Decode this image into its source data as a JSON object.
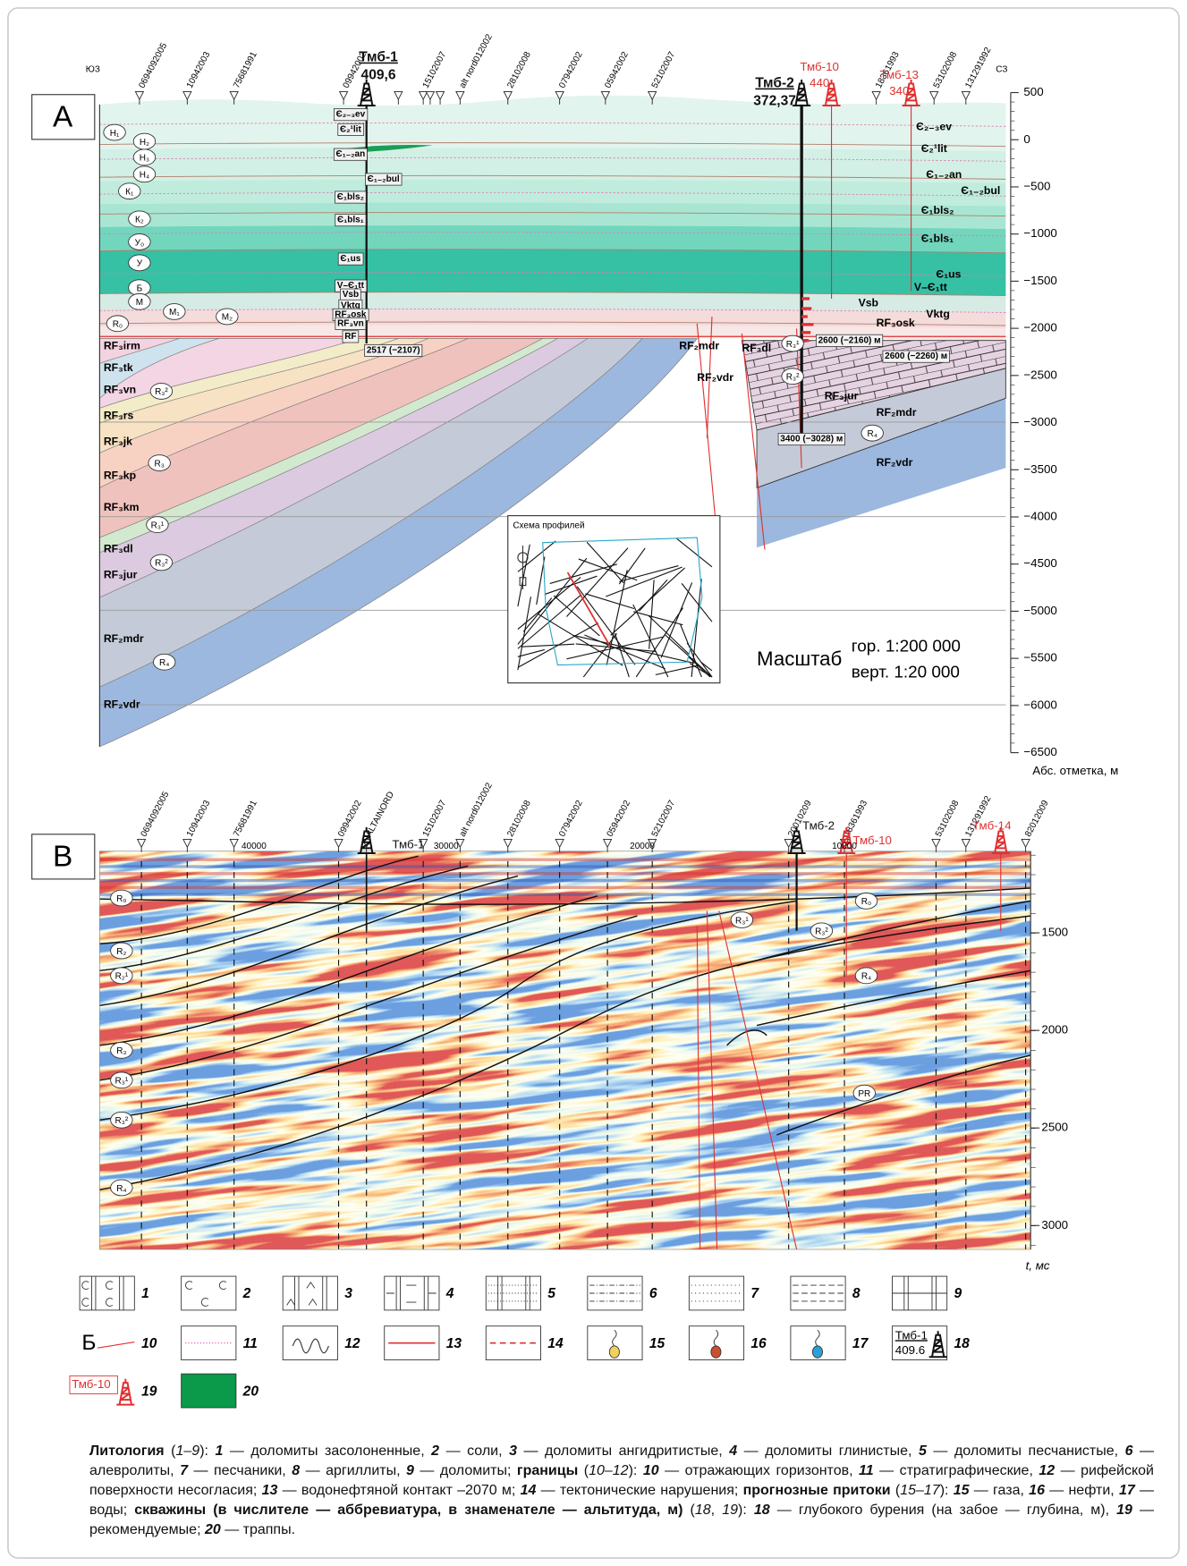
{
  "panel_a": {
    "label": "A",
    "directions": [
      "ЮЗ",
      "СЗ"
    ],
    "wells": [
      {
        "name": "0694092005"
      },
      {
        "name": "10942003"
      },
      {
        "name": "75681991"
      },
      {
        "name": "09942002"
      },
      {
        "name": "15102007"
      },
      {
        "name": "alt nord012002"
      },
      {
        "name": "28102008"
      },
      {
        "name": "07942002"
      },
      {
        "name": "05942002"
      },
      {
        "name": "52102007"
      },
      {
        "name": "18361993"
      },
      {
        "name": "53102008"
      },
      {
        "name": "131291992"
      }
    ],
    "drilled": [
      {
        "name": "Тмб-1",
        "altitude": "409,6"
      },
      {
        "name": "Тмб-2",
        "altitude": "372,37"
      },
      {
        "name": "Тмб-10",
        "altitude": "440"
      },
      {
        "name": "Тмб-13",
        "altitude": "340"
      }
    ],
    "depth_ticks": [
      "500",
      "0",
      "−500",
      "−1000",
      "−1500",
      "−2000",
      "−2500",
      "−3000",
      "−3500",
      "−4000",
      "−4500",
      "−5000",
      "−5500",
      "−6000",
      "−6500"
    ],
    "axis_label": "Абс. отметка, м",
    "formations": [
      "Є₂₋₃ev",
      "Є₂¹lit",
      "Є₁₋₂an",
      "Є₁₋₂bul",
      "Є₁bls₂",
      "Є₁bls₁",
      "Є₁us",
      "V–Є₁tt",
      "Vsb",
      "Vktg",
      "RF₃osk",
      "RF₂mdr",
      "RF₃dl",
      "RF₂vdr",
      "RF₃jur",
      "RF₂mdr",
      "RF₂vdr",
      "RF₃irm",
      "RF₃tk",
      "RF₃vn",
      "RF₃rs",
      "RF₃jk",
      "RF₃kp",
      "RF₃km",
      "RF₃dl",
      "RF₃jur",
      "RF₂mdr",
      "RF₂vdr"
    ],
    "horizons": [
      "Н₁",
      "Н₂",
      "Н₃",
      "Н₄",
      "К₁",
      "К₂",
      "У₀",
      "У",
      "Б",
      "М",
      "М₁",
      "М₂",
      "R₀",
      "R₃²",
      "R₃",
      "R₃¹",
      "R₃²",
      "R₄",
      "R₃¹",
      "R₃²",
      "R₄"
    ],
    "well_column": [
      "Є₂₋₃ev",
      "Є₂¹lit",
      "Є₁₋₂an",
      "Є₁₋₂bul",
      "Є₁bls₂",
      "Є₁bls₁",
      "Є₁us",
      "V–Є₁tt",
      "Vsb",
      "Vktg",
      "RF₃osk",
      "RF₃vn",
      "RF"
    ],
    "depth_notes": [
      "2517 (−2107)",
      "2600 (−2160) м",
      "2600 (−2260) м",
      "3400 (−3028) м"
    ],
    "inset_title": "Схема профилей",
    "scale": {
      "label": "Масштаб",
      "horizontal": "гор. 1:200 000",
      "vertical": "верт. 1:20 000"
    }
  },
  "panel_b": {
    "label": "B",
    "wells": [
      {
        "name": "0694092005"
      },
      {
        "name": "10942003"
      },
      {
        "name": "75681991"
      },
      {
        "name": "09942002"
      },
      {
        "name": "ALTAINORD"
      },
      {
        "name": "15102007"
      },
      {
        "name": "alt nord012002"
      },
      {
        "name": "28102008"
      },
      {
        "name": "07942002"
      },
      {
        "name": "05942002"
      },
      {
        "name": "52102007"
      },
      {
        "name": "20010209"
      },
      {
        "name": "18361993"
      },
      {
        "name": "53102008"
      },
      {
        "name": "131291992"
      },
      {
        "name": "82012009"
      }
    ],
    "drilled": [
      {
        "name": "Тмб-1"
      },
      {
        "name": "Тмб-2"
      },
      {
        "name": "Тмб-10"
      },
      {
        "name": "Тмб-14"
      }
    ],
    "distances": [
      "40000",
      "30000",
      "20000",
      "10000"
    ],
    "time_ticks": [
      "1500",
      "2000",
      "2500",
      "3000"
    ],
    "axis_label": "t, мс",
    "horizons": [
      "R₀",
      "R₂",
      "R₂¹",
      "R₃",
      "R₃¹",
      "R₃²",
      "R₄",
      "R₃¹",
      "R₃²",
      "R₀",
      "R₄",
      "PR"
    ]
  },
  "legend": [
    {
      "number": "1"
    },
    {
      "number": "2"
    },
    {
      "number": "3"
    },
    {
      "number": "4"
    },
    {
      "number": "5"
    },
    {
      "number": "6"
    },
    {
      "number": "7"
    },
    {
      "number": "8"
    },
    {
      "number": "9"
    },
    {
      "number": "10",
      "sample": "Б"
    },
    {
      "number": "11"
    },
    {
      "number": "12"
    },
    {
      "number": "13"
    },
    {
      "number": "14"
    },
    {
      "number": "15"
    },
    {
      "number": "16"
    },
    {
      "number": "17"
    },
    {
      "number": "18",
      "well": "Тмб-1",
      "altitude": "409.6"
    },
    {
      "number": "19",
      "well": "Тмб-10"
    },
    {
      "number": "20"
    }
  ],
  "caption": [
    {
      "text": "Литология",
      "style": "b"
    },
    {
      "text": " ("
    },
    {
      "text": "1–9",
      "style": "i"
    },
    {
      "text": "): "
    },
    {
      "text": "1",
      "style": "bi"
    },
    {
      "text": " — доломиты засолоненные, "
    },
    {
      "text": "2",
      "style": "bi"
    },
    {
      "text": " — соли, "
    },
    {
      "text": "3",
      "style": "bi"
    },
    {
      "text": " — доломиты ангидритистые, "
    },
    {
      "text": "4",
      "style": "bi"
    },
    {
      "text": " — доломиты глинистые, "
    },
    {
      "text": "5",
      "style": "bi"
    },
    {
      "text": " — доломиты песчанистые, "
    },
    {
      "text": "6",
      "style": "bi"
    },
    {
      "text": " — алевролиты, "
    },
    {
      "text": "7",
      "style": "bi"
    },
    {
      "text": " — песчаники, "
    },
    {
      "text": "8",
      "style": "bi"
    },
    {
      "text": " — аргиллиты, "
    },
    {
      "text": "9",
      "style": "bi"
    },
    {
      "text": " — доломиты; "
    },
    {
      "text": "границы",
      "style": "b"
    },
    {
      "text": " ("
    },
    {
      "text": "10–12",
      "style": "i"
    },
    {
      "text": "): "
    },
    {
      "text": "10",
      "style": "bi"
    },
    {
      "text": " — отражающих горизонтов, "
    },
    {
      "text": "11",
      "style": "bi"
    },
    {
      "text": " — стратиграфические, "
    },
    {
      "text": "12",
      "style": "bi"
    },
    {
      "text": " — рифейской поверхности несогласия; "
    },
    {
      "text": "13",
      "style": "bi"
    },
    {
      "text": " — водонефтяной контакт –2070 м; "
    },
    {
      "text": "14",
      "style": "bi"
    },
    {
      "text": " — тектонические нарушения; "
    },
    {
      "text": "прогнозные притоки",
      "style": "b"
    },
    {
      "text": " ("
    },
    {
      "text": "15–17",
      "style": "i"
    },
    {
      "text": "): "
    },
    {
      "text": "15",
      "style": "bi"
    },
    {
      "text": " — газа, "
    },
    {
      "text": "16",
      "style": "bi"
    },
    {
      "text": " — нефти, "
    },
    {
      "text": "17",
      "style": "bi"
    },
    {
      "text": " — воды; "
    },
    {
      "text": "скважины (в числителе — аббревиатура, в знаменателе — альтитуда, м)",
      "style": "b"
    },
    {
      "text": " ("
    },
    {
      "text": "18",
      "style": "i"
    },
    {
      "text": ", "
    },
    {
      "text": "19",
      "style": "i"
    },
    {
      "text": "): "
    },
    {
      "text": "18",
      "style": "bi"
    },
    {
      "text": " — глубокого бурения (на забое — глубина, м), "
    },
    {
      "text": "19",
      "style": "bi"
    },
    {
      "text": " — рекомендуемые; "
    },
    {
      "text": "20",
      "style": "bi"
    },
    {
      "text": " — траппы."
    }
  ]
}
